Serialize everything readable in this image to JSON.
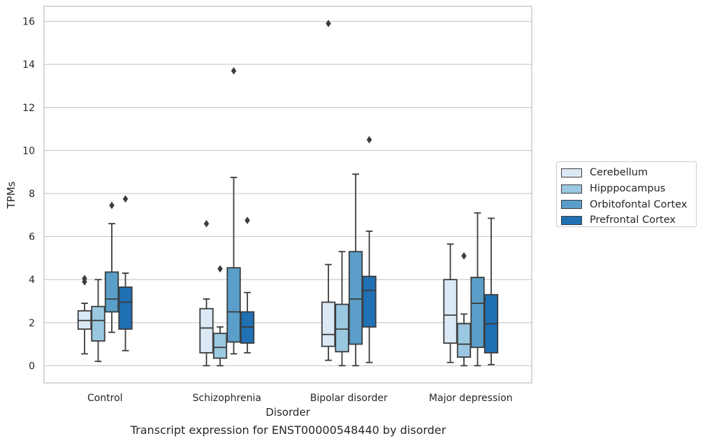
{
  "chart_data": {
    "type": "box",
    "caption": "Transcript expression for ENST00000548440 by disorder",
    "xlabel": "Disorder",
    "ylabel": "TPMs",
    "ylim": [
      -0.8,
      16.7
    ],
    "yticks": [
      0,
      2,
      4,
      6,
      8,
      10,
      12,
      14,
      16
    ],
    "categories": [
      "Control",
      "Schizophrenia",
      "Bipolar disorder",
      "Major depression"
    ],
    "legend_position": "right",
    "grid": "horizontal",
    "series": [
      {
        "name": "Cerebellum",
        "color": "#dbe9f6",
        "boxes": [
          {
            "whislo": 0.55,
            "q1": 1.7,
            "med": 2.1,
            "q3": 2.55,
            "whishi": 2.9,
            "fliers": [
              3.9,
              4.05
            ]
          },
          {
            "whislo": 0.0,
            "q1": 0.6,
            "med": 1.75,
            "q3": 2.65,
            "whishi": 3.1,
            "fliers": [
              6.6
            ]
          },
          {
            "whislo": 0.25,
            "q1": 0.9,
            "med": 1.45,
            "q3": 2.95,
            "whishi": 4.7,
            "fliers": [
              15.9
            ]
          },
          {
            "whislo": 0.15,
            "q1": 1.05,
            "med": 2.35,
            "q3": 4.0,
            "whishi": 5.65,
            "fliers": []
          }
        ]
      },
      {
        "name": "Hipppocampus",
        "color": "#9ac8e0",
        "boxes": [
          {
            "whislo": 0.2,
            "q1": 1.15,
            "med": 2.1,
            "q3": 2.75,
            "whishi": 4.0,
            "fliers": []
          },
          {
            "whislo": 0.0,
            "q1": 0.35,
            "med": 0.85,
            "q3": 1.5,
            "whishi": 1.8,
            "fliers": [
              4.5
            ]
          },
          {
            "whislo": 0.0,
            "q1": 0.65,
            "med": 1.7,
            "q3": 2.85,
            "whishi": 5.3,
            "fliers": []
          },
          {
            "whislo": 0.0,
            "q1": 0.4,
            "med": 1.0,
            "q3": 1.95,
            "whishi": 2.4,
            "fliers": [
              5.1
            ]
          }
        ]
      },
      {
        "name": "Orbitofontal Cortex",
        "color": "#5a9ec9",
        "boxes": [
          {
            "whislo": 1.55,
            "q1": 2.5,
            "med": 3.1,
            "q3": 4.35,
            "whishi": 6.6,
            "fliers": [
              7.45
            ]
          },
          {
            "whislo": 0.55,
            "q1": 1.1,
            "med": 2.5,
            "q3": 4.55,
            "whishi": 8.75,
            "fliers": [
              13.7
            ]
          },
          {
            "whislo": 0.0,
            "q1": 1.0,
            "med": 3.1,
            "q3": 5.3,
            "whishi": 8.9,
            "fliers": []
          },
          {
            "whislo": 0.0,
            "q1": 0.85,
            "med": 2.9,
            "q3": 4.1,
            "whishi": 7.1,
            "fliers": []
          }
        ]
      },
      {
        "name": "Prefrontal Cortex",
        "color": "#2070b4",
        "boxes": [
          {
            "whislo": 0.7,
            "q1": 1.7,
            "med": 2.95,
            "q3": 3.65,
            "whishi": 4.3,
            "fliers": [
              7.75
            ]
          },
          {
            "whislo": 0.6,
            "q1": 1.05,
            "med": 1.8,
            "q3": 2.5,
            "whishi": 3.4,
            "fliers": [
              6.75
            ]
          },
          {
            "whislo": 0.15,
            "q1": 1.8,
            "med": 3.5,
            "q3": 4.15,
            "whishi": 6.25,
            "fliers": [
              10.5
            ]
          },
          {
            "whislo": 0.05,
            "q1": 0.6,
            "med": 1.95,
            "q3": 3.3,
            "whishi": 6.85,
            "fliers": []
          }
        ]
      }
    ]
  }
}
